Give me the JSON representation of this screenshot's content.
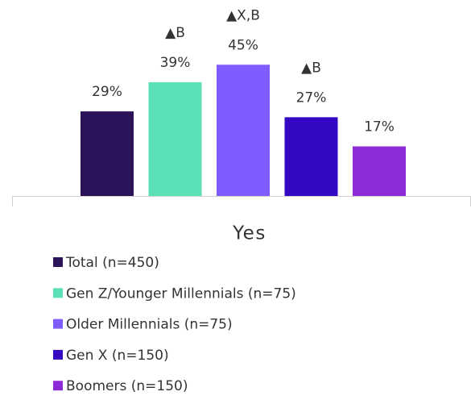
{
  "chart_data": {
    "type": "bar",
    "categories": [
      "Yes"
    ],
    "ylim": [
      0,
      60
    ],
    "series": [
      {
        "name": "Total (n=450)",
        "color": "#2b1259",
        "values": [
          29
        ],
        "value_labels": [
          "29%"
        ]
      },
      {
        "name": "Gen Z/Younger Millennials (n=75)",
        "color": "#5ce0b7",
        "values": [
          39
        ],
        "value_labels": [
          "39%"
        ],
        "annotation": "▲B"
      },
      {
        "name": "Older Millennials (n=75)",
        "color": "#7f5cff",
        "values": [
          45
        ],
        "value_labels": [
          "45%"
        ],
        "annotation": "▲X,B"
      },
      {
        "name": "Gen X (n=150)",
        "color": "#3508c4",
        "values": [
          27
        ],
        "value_labels": [
          "27%"
        ],
        "annotation": "▲B"
      },
      {
        "name": "Boomers (n=150)",
        "color": "#8e2bd9",
        "values": [
          17
        ],
        "value_labels": [
          "17%"
        ]
      }
    ],
    "legend": "bottom-left"
  }
}
